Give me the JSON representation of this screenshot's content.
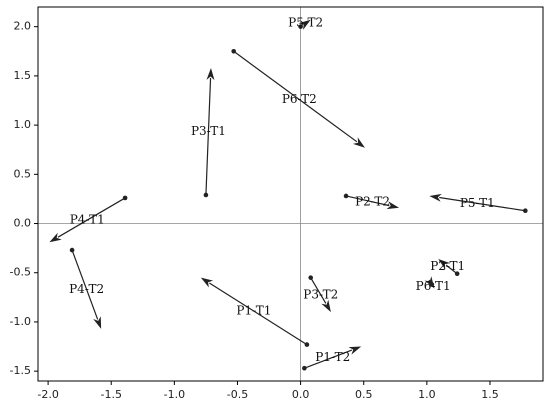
{
  "chart_data": {
    "type": "quiver",
    "xlim": [
      -2.08,
      1.92
    ],
    "ylim": [
      -1.6,
      2.2
    ],
    "xticks": [
      -2.0,
      -1.5,
      -1.0,
      -0.5,
      0.0,
      0.5,
      1.0,
      1.5
    ],
    "yticks": [
      -1.5,
      -1.0,
      -0.5,
      0.0,
      0.5,
      1.0,
      1.5,
      2.0
    ],
    "reference_lines": {
      "x": 0,
      "y": 0
    },
    "color": "#222222",
    "arrows": [
      {
        "label": "P5-T2",
        "x": 0.0,
        "y": 2.0,
        "x_end": 0.08,
        "y_end": 2.07
      },
      {
        "label": "P6-T2",
        "x": -0.53,
        "y": 1.75,
        "x_end": 0.51,
        "y_end": 0.77
      },
      {
        "label": "P3-T1",
        "x": -0.75,
        "y": 0.29,
        "x_end": -0.71,
        "y_end": 1.58
      },
      {
        "label": "P4-T1",
        "x": -1.39,
        "y": 0.26,
        "x_end": -1.99,
        "y_end": -0.19
      },
      {
        "label": "P4-T2",
        "x": -1.81,
        "y": -0.27,
        "x_end": -1.58,
        "y_end": -1.07
      },
      {
        "label": "P2-T2",
        "x": 0.36,
        "y": 0.28,
        "x_end": 0.78,
        "y_end": 0.16
      },
      {
        "label": "P5-T1",
        "x": 1.78,
        "y": 0.13,
        "x_end": 1.02,
        "y_end": 0.28
      },
      {
        "label": "P2-T1",
        "x": 1.24,
        "y": -0.51,
        "x_end": 1.09,
        "y_end": -0.36
      },
      {
        "label": "P6-T1",
        "x": 1.04,
        "y": -0.62,
        "x_end": 1.06,
        "y_end": -0.66
      },
      {
        "label": "P3-T2",
        "x": 0.08,
        "y": -0.55,
        "x_end": 0.24,
        "y_end": -0.9
      },
      {
        "label": "P1-T1",
        "x": 0.05,
        "y": -1.23,
        "x_end": -0.79,
        "y_end": -0.55
      },
      {
        "label": "P1-T2",
        "x": 0.03,
        "y": -1.47,
        "x_end": 0.48,
        "y_end": -1.25
      }
    ]
  }
}
